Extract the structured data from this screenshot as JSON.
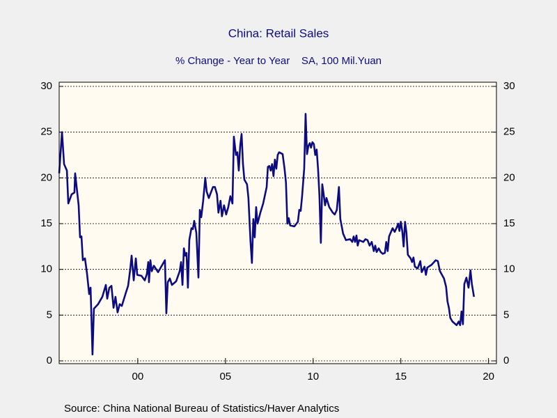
{
  "chart_data": {
    "type": "line",
    "title": "China: Retail Sales",
    "subtitle": "% Change - Year to Year    SA, 100 Mil.Yuan",
    "source": "Source:  China National Bureau of Statistics/Haver Analytics",
    "xlim": [
      1995.52,
      2020.45
    ],
    "xticks": [
      {
        "value": 2000,
        "label": "00"
      },
      {
        "value": 2005,
        "label": "05"
      },
      {
        "value": 2010,
        "label": "10"
      },
      {
        "value": 2015,
        "label": "15"
      },
      {
        "value": 2020,
        "label": "20"
      }
    ],
    "ylim": [
      0,
      30
    ],
    "yticks": [
      0,
      5,
      10,
      15,
      20,
      25,
      30
    ],
    "y2lim": [
      0,
      30
    ],
    "y2ticks": [
      0,
      5,
      10,
      15,
      20,
      25,
      30
    ],
    "grid": true,
    "series": [
      {
        "name": "Retail Sales",
        "color": "#0c0c80",
        "x": [
          1995.52,
          1995.68,
          1995.8,
          1995.96,
          1996.04,
          1996.23,
          1996.39,
          1996.43,
          1996.63,
          1996.71,
          1996.79,
          1996.87,
          1996.99,
          1997.11,
          1997.23,
          1997.31,
          1997.42,
          1997.5,
          1997.74,
          1997.98,
          1998.18,
          1998.26,
          1998.38,
          1998.5,
          1998.62,
          1998.73,
          1998.85,
          1998.97,
          1999.09,
          1999.33,
          1999.45,
          1999.57,
          1999.65,
          1999.77,
          1999.89,
          1999.97,
          2000.21,
          2000.4,
          2000.52,
          2000.6,
          2000.64,
          2000.72,
          2000.8,
          2000.92,
          2001.16,
          2001.4,
          2001.55,
          2001.63,
          2001.71,
          2001.83,
          2001.95,
          2002.19,
          2002.39,
          2002.47,
          2002.55,
          2002.63,
          2002.71,
          2002.78,
          2002.86,
          2002.94,
          2003.06,
          2003.14,
          2003.22,
          2003.34,
          2003.46,
          2003.54,
          2003.62,
          2003.73,
          2003.85,
          2003.93,
          2004.05,
          2004.29,
          2004.4,
          2004.52,
          2004.6,
          2004.72,
          2004.8,
          2004.92,
          2005.04,
          2005.16,
          2005.28,
          2005.4,
          2005.48,
          2005.6,
          2005.68,
          2005.76,
          2005.84,
          2005.92,
          2006.0,
          2006.08,
          2006.23,
          2006.31,
          2006.43,
          2006.51,
          2006.59,
          2006.67,
          2006.75,
          2006.83,
          2006.99,
          2007.15,
          2007.35,
          2007.42,
          2007.5,
          2007.58,
          2007.66,
          2007.74,
          2007.82,
          2007.9,
          2007.98,
          2008.06,
          2008.26,
          2008.37,
          2008.45,
          2008.53,
          2008.61,
          2008.69,
          2008.93,
          2009.13,
          2009.21,
          2009.29,
          2009.37,
          2009.49,
          2009.57,
          2009.65,
          2009.73,
          2009.81,
          2009.88,
          2009.96,
          2010.04,
          2010.12,
          2010.2,
          2010.28,
          2010.36,
          2010.44,
          2010.52,
          2010.6,
          2010.68,
          2010.76,
          2010.92,
          2011.12,
          2011.23,
          2011.35,
          2011.47,
          2011.55,
          2011.71,
          2011.87,
          2012.11,
          2012.23,
          2012.31,
          2012.39,
          2012.47,
          2012.54,
          2012.62,
          2012.86,
          2012.98,
          2013.1,
          2013.22,
          2013.34,
          2013.46,
          2013.54,
          2013.62,
          2013.74,
          2013.85,
          2013.97,
          2014.09,
          2014.17,
          2014.25,
          2014.33,
          2014.53,
          2014.65,
          2014.77,
          2014.85,
          2014.92,
          2015.0,
          2015.08,
          2015.16,
          2015.24,
          2015.32,
          2015.4,
          2015.56,
          2015.64,
          2015.72,
          2015.8,
          2015.96,
          2016.11,
          2016.19,
          2016.35,
          2016.43,
          2016.51,
          2016.75,
          2016.99,
          2017.11,
          2017.23,
          2017.46,
          2017.58,
          2017.66,
          2017.74,
          2017.82,
          2017.94,
          2018.18,
          2018.3,
          2018.38,
          2018.46,
          2018.54,
          2018.62,
          2018.74,
          2018.86,
          2018.97,
          2019.05,
          2019.17
        ],
        "values": [
          20.5,
          25,
          21.5,
          20.8,
          17.2,
          18.2,
          18.4,
          20.5,
          17,
          13.5,
          13.6,
          11,
          11.2,
          9.5,
          7.3,
          8,
          0.7,
          5.7,
          6.2,
          7.0,
          8.3,
          6.8,
          8.0,
          8.2,
          5.8,
          7.0,
          5.3,
          6.2,
          6.0,
          7.5,
          8.2,
          10.0,
          11.5,
          8.8,
          11.2,
          9.4,
          9.3,
          8.8,
          9.5,
          10.8,
          8.6,
          11.0,
          9.8,
          10.4,
          9.7,
          10.5,
          11.0,
          5.2,
          8.6,
          9.0,
          8.3,
          8.7,
          9.8,
          10.8,
          8.3,
          12.3,
          11.5,
          11.8,
          8.0,
          13.2,
          14.5,
          14.4,
          15.3,
          14.0,
          9.1,
          16.5,
          15.7,
          17.5,
          20.0,
          18.5,
          17.8,
          19.0,
          19.0,
          18.2,
          16.2,
          17.5,
          15.8,
          17.0,
          16.0,
          16.8,
          18.0,
          17.2,
          24.5,
          22.5,
          22.8,
          20.8,
          23.5,
          24.8,
          21.5,
          19.8,
          19.3,
          17.8,
          13.0,
          10.7,
          15.5,
          13.5,
          16.8,
          15.0,
          16.2,
          17.2,
          19.0,
          21.2,
          21.3,
          20.8,
          21.5,
          20.2,
          22.0,
          21.0,
          22.5,
          22.8,
          22.6,
          21.0,
          19.5,
          15.0,
          15.6,
          14.8,
          14.7,
          15.2,
          16.5,
          16.4,
          18.0,
          21.0,
          27.0,
          22.6,
          23.5,
          23.8,
          23.3,
          23.9,
          23.7,
          22.5,
          23.1,
          21.0,
          18.0,
          12.9,
          19.3,
          18.2,
          17.0,
          17.8,
          16.8,
          16.2,
          16.0,
          16.5,
          19.0,
          15.5,
          13.9,
          13.2,
          13.3,
          13.0,
          13.6,
          13.0,
          13.7,
          12.6,
          13.2,
          13.0,
          13.3,
          13.2,
          12.6,
          13.0,
          12.0,
          12.6,
          11.9,
          12.3,
          11.9,
          11.7,
          11.8,
          13.0,
          12.0,
          13.6,
          14.5,
          14.1,
          14.6,
          15.0,
          14.2,
          15.2,
          14.2,
          12.5,
          15.2,
          14.0,
          11.6,
          11.2,
          10.8,
          11.3,
          10.3,
          10.1,
          10.9,
          9.7,
          10.3,
          9.4,
          10.2,
          10.5,
          11.0,
          10.9,
          9.8,
          9.0,
          8.1,
          6.5,
          5.8,
          4.7,
          4.3,
          3.9,
          4.3,
          3.9,
          5.4,
          4.0,
          8.4,
          9.1,
          8.0,
          9.9,
          8.4,
          7.0
        ]
      }
    ]
  }
}
